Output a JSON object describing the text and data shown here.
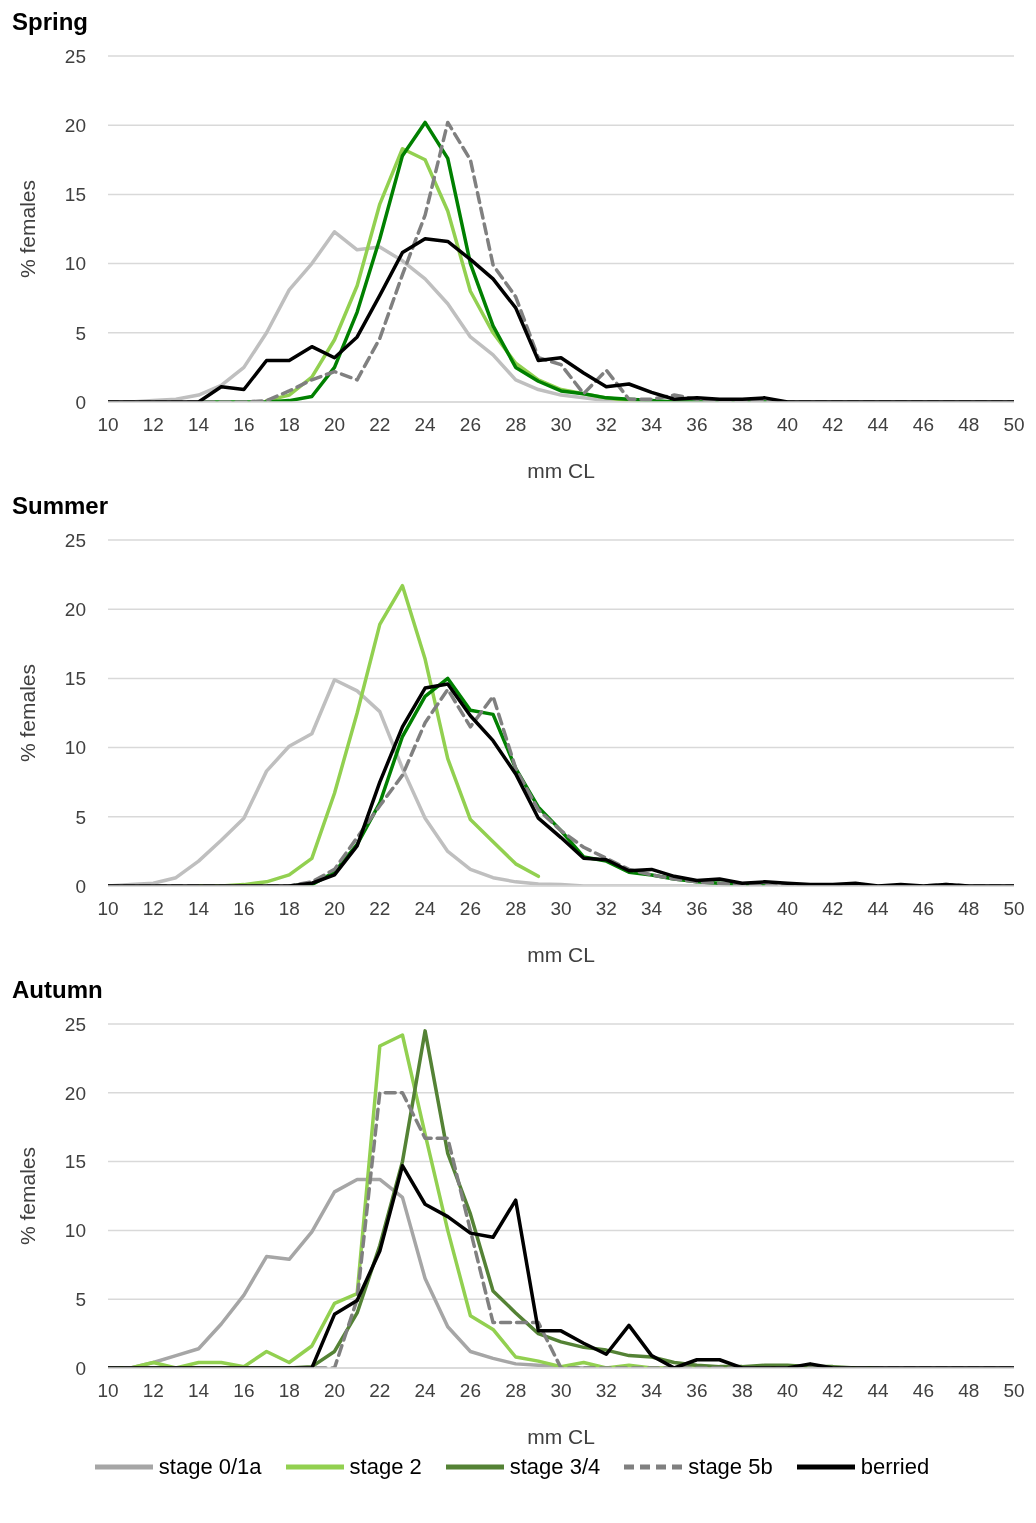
{
  "chart_data": [
    {
      "type": "line",
      "title": "Spring",
      "xlabel": "mm CL",
      "ylabel": "% females",
      "x": [
        10,
        11,
        12,
        13,
        14,
        15,
        16,
        17,
        18,
        19,
        20,
        21,
        22,
        23,
        24,
        25,
        26,
        27,
        28,
        29,
        30,
        31,
        32,
        33,
        34,
        35,
        36,
        37,
        38,
        39,
        40,
        41,
        42,
        43,
        44,
        45,
        46,
        47,
        48,
        49,
        50
      ],
      "xlim": [
        10,
        50
      ],
      "xticks": [
        10,
        12,
        14,
        16,
        18,
        20,
        22,
        24,
        26,
        28,
        30,
        32,
        34,
        36,
        38,
        40,
        42,
        44,
        46,
        48,
        50
      ],
      "ylim": [
        0,
        25
      ],
      "yticks": [
        0,
        5,
        10,
        15,
        20,
        25
      ],
      "grid": "y",
      "marker": "none",
      "line_style": "solid",
      "series": [
        {
          "color": "#bfbfbf",
          "values": [
            0,
            0,
            0.1,
            0.2,
            0.5,
            1.2,
            2.5,
            5,
            8.1,
            10,
            12.3,
            11,
            11.2,
            10.2,
            8.9,
            7.1,
            4.7,
            3.4,
            1.6,
            0.9,
            0.5,
            0.3,
            0.1,
            0,
            0,
            0,
            0,
            0,
            0,
            0,
            0,
            0,
            0,
            0,
            0,
            0,
            0,
            0,
            0,
            0,
            0
          ]
        },
        {
          "color": "#92d050",
          "values": [
            null,
            null,
            null,
            null,
            null,
            null,
            null,
            0.1,
            0.5,
            1.8,
            4.5,
            8.4,
            14.3,
            18.3,
            17.5,
            13.8,
            8,
            5,
            2.8,
            1.6,
            0.9,
            0.6,
            0.3,
            0.1,
            0,
            0,
            null,
            null,
            null,
            null,
            null,
            null,
            null,
            null,
            null,
            null,
            null,
            null,
            null,
            null,
            null
          ]
        },
        {
          "color": "#008000",
          "values": [
            null,
            null,
            null,
            null,
            0,
            0,
            0,
            0,
            0.1,
            0.4,
            2.5,
            6.5,
            11.8,
            17.8,
            20.2,
            17.6,
            10,
            5.5,
            2.5,
            1.5,
            0.8,
            0.6,
            0.3,
            0.2,
            0.1,
            0,
            0,
            0,
            0,
            0,
            0,
            null,
            null,
            null,
            null,
            null,
            null,
            null,
            null,
            null,
            null
          ]
        },
        {
          "color": "#808080",
          "line_style": "dashed",
          "values": [
            0,
            0,
            0,
            0,
            0,
            0,
            0,
            0.1,
            0.8,
            1.6,
            2.2,
            1.6,
            4.6,
            9.2,
            13.5,
            20.2,
            17.5,
            9.9,
            7.6,
            3.2,
            2.7,
            0.6,
            2.3,
            0.2,
            0.2,
            0.5,
            0.2,
            0.1,
            0.1,
            0.1,
            0,
            0,
            0,
            0,
            0,
            0,
            0,
            0,
            0,
            0,
            0
          ]
        },
        {
          "color": "#000000",
          "values": [
            0,
            0,
            0,
            0,
            0,
            1.1,
            0.9,
            3,
            3,
            4,
            3.2,
            4.7,
            7.7,
            10.8,
            11.8,
            11.6,
            10.3,
            8.9,
            6.8,
            3,
            3.2,
            2.1,
            1.1,
            1.3,
            0.7,
            0.2,
            0.3,
            0.2,
            0.2,
            0.3,
            0,
            0,
            0,
            0,
            0,
            0,
            0,
            0,
            0,
            0,
            0
          ]
        }
      ]
    },
    {
      "type": "line",
      "title": "Summer",
      "xlabel": "mm CL",
      "ylabel": "% females",
      "x": [
        10,
        11,
        12,
        13,
        14,
        15,
        16,
        17,
        18,
        19,
        20,
        21,
        22,
        23,
        24,
        25,
        26,
        27,
        28,
        29,
        30,
        31,
        32,
        33,
        34,
        35,
        36,
        37,
        38,
        39,
        40,
        41,
        42,
        43,
        44,
        45,
        46,
        47,
        48,
        49,
        50
      ],
      "xlim": [
        10,
        50
      ],
      "xticks": [
        10,
        12,
        14,
        16,
        18,
        20,
        22,
        24,
        26,
        28,
        30,
        32,
        34,
        36,
        38,
        40,
        42,
        44,
        46,
        48,
        50
      ],
      "ylim": [
        0,
        25
      ],
      "yticks": [
        0,
        5,
        10,
        15,
        20,
        25
      ],
      "grid": "y",
      "marker": "none",
      "line_style": "solid",
      "series": [
        {
          "color": "#bfbfbf",
          "values": [
            0,
            0.1,
            0.2,
            0.6,
            1.8,
            3.3,
            4.9,
            8.3,
            10.1,
            11,
            14.9,
            14.1,
            12.6,
            8.5,
            4.9,
            2.5,
            1.2,
            0.6,
            0.3,
            0.15,
            0.1,
            0,
            0,
            0,
            0,
            0,
            0,
            0,
            0,
            0,
            0,
            0,
            0,
            0,
            0,
            0,
            0,
            0,
            0,
            0,
            0
          ]
        },
        {
          "color": "#92d050",
          "values": [
            null,
            null,
            null,
            null,
            0,
            0,
            0.1,
            0.3,
            0.8,
            2,
            6.7,
            12.5,
            18.9,
            21.7,
            16.4,
            9.2,
            4.8,
            3.2,
            1.6,
            0.7,
            null,
            null,
            null,
            null,
            null,
            null,
            null,
            null,
            null,
            null,
            null,
            null,
            null,
            null,
            null,
            null,
            null,
            null,
            null,
            null,
            null
          ]
        },
        {
          "color": "#008000",
          "values": [
            null,
            null,
            null,
            null,
            null,
            null,
            null,
            null,
            0,
            0.1,
            1,
            3,
            6,
            10.8,
            13.7,
            15,
            12.7,
            12.4,
            8.5,
            5.7,
            4,
            2.1,
            1.8,
            1,
            0.8,
            0.5,
            0.3,
            0.2,
            0.1,
            0,
            null,
            null,
            null,
            null,
            null,
            null,
            null,
            null,
            null,
            null,
            null
          ]
        },
        {
          "color": "#808080",
          "line_style": "dashed",
          "values": [
            0,
            0,
            0,
            0,
            0,
            0,
            0,
            0,
            0,
            0.3,
            1.2,
            3.5,
            5.8,
            8,
            11.8,
            14.2,
            11.5,
            13.7,
            8.5,
            5.5,
            4,
            2.8,
            2,
            1.2,
            0.8,
            0.5,
            0.3,
            0.2,
            0.1,
            0,
            0,
            0,
            0,
            0,
            0,
            0,
            0,
            0.1,
            0,
            0,
            0
          ]
        },
        {
          "color": "#000000",
          "values": [
            0,
            0,
            0,
            0,
            0,
            0,
            0,
            0,
            0,
            0.2,
            0.8,
            2.9,
            7.5,
            11.5,
            14.3,
            14.6,
            12.3,
            10.5,
            8.1,
            4.9,
            3.5,
            2,
            1.9,
            1.1,
            1.2,
            0.7,
            0.4,
            0.5,
            0.2,
            0.3,
            0.2,
            0.1,
            0.1,
            0.2,
            0,
            0.1,
            0,
            0.1,
            0,
            0,
            0
          ]
        }
      ]
    },
    {
      "type": "line",
      "title": "Autumn",
      "xlabel": "mm CL",
      "ylabel": "% females",
      "x": [
        10,
        11,
        12,
        13,
        14,
        15,
        16,
        17,
        18,
        19,
        20,
        21,
        22,
        23,
        24,
        25,
        26,
        27,
        28,
        29,
        30,
        31,
        32,
        33,
        34,
        35,
        36,
        37,
        38,
        39,
        40,
        41,
        42,
        43,
        44,
        45,
        46,
        47,
        48,
        49,
        50
      ],
      "xlim": [
        10,
        50
      ],
      "xticks": [
        10,
        12,
        14,
        16,
        18,
        20,
        22,
        24,
        26,
        28,
        30,
        32,
        34,
        36,
        38,
        40,
        42,
        44,
        46,
        48,
        50
      ],
      "ylim": [
        0,
        25
      ],
      "yticks": [
        0,
        5,
        10,
        15,
        20,
        25
      ],
      "grid": "y",
      "marker": "none",
      "line_style": "solid",
      "legend": "bottom",
      "series": [
        {
          "name": "stage 0/1a",
          "color": "#a6a6a6",
          "values": [
            0,
            0,
            0.4,
            0.9,
            1.4,
            3.2,
            5.3,
            8.1,
            7.9,
            9.9,
            12.8,
            13.7,
            13.7,
            12.4,
            6.5,
            3,
            1.2,
            0.7,
            0.3,
            0.2,
            0.1,
            0,
            0,
            0,
            0,
            0,
            0,
            0,
            0,
            0,
            0,
            0,
            0,
            0,
            0,
            0,
            0,
            0,
            0,
            0,
            0
          ]
        },
        {
          "name": "stage 2",
          "color": "#92d050",
          "values": [
            0,
            0,
            0.4,
            0,
            0.4,
            0.4,
            0.1,
            1.2,
            0.4,
            1.6,
            4.7,
            5.4,
            23.4,
            24.2,
            17,
            10,
            3.8,
            2.8,
            0.8,
            0.5,
            0.1,
            0.4,
            0,
            0.2,
            0,
            0,
            0,
            0,
            0,
            0.1,
            0,
            0,
            0,
            0,
            0,
            null,
            null,
            null,
            null,
            null,
            null
          ]
        },
        {
          "name": "stage 3/4",
          "color": "#548235",
          "values": [
            0,
            0,
            0,
            0,
            0,
            0,
            0,
            0,
            0,
            0.1,
            1.2,
            4,
            8.9,
            15,
            24.5,
            15.6,
            11.2,
            5.6,
            4,
            2.5,
            1.9,
            1.5,
            1.3,
            0.9,
            0.8,
            0.4,
            0.2,
            0.1,
            0.1,
            0.2,
            0.2,
            0.1,
            0.1,
            0,
            0,
            null,
            null,
            null,
            null,
            null,
            null
          ]
        },
        {
          "name": "stage 5b",
          "color": "#808080",
          "line_style": "dashed",
          "values": [
            0,
            0,
            0,
            0,
            0,
            0,
            0,
            0,
            0,
            0,
            0,
            5,
            20,
            20,
            16.7,
            16.7,
            10,
            3.3,
            3.3,
            3.3,
            0,
            0,
            0,
            0,
            0,
            0,
            0,
            0,
            0,
            0,
            0,
            0,
            0,
            0,
            0,
            0,
            0,
            0,
            0,
            0,
            0
          ]
        },
        {
          "name": "berried",
          "color": "#000000",
          "values": [
            0,
            0,
            0,
            0,
            0,
            0,
            0,
            0,
            0,
            0,
            3.9,
            4.9,
            8.5,
            14.7,
            11.9,
            11,
            9.8,
            9.5,
            12.2,
            2.7,
            2.7,
            1.8,
            1,
            3.1,
            0.9,
            0,
            0.6,
            0.6,
            0,
            0,
            0,
            0.3,
            0,
            0,
            0,
            0,
            0,
            0,
            0,
            0,
            0
          ]
        }
      ]
    }
  ]
}
